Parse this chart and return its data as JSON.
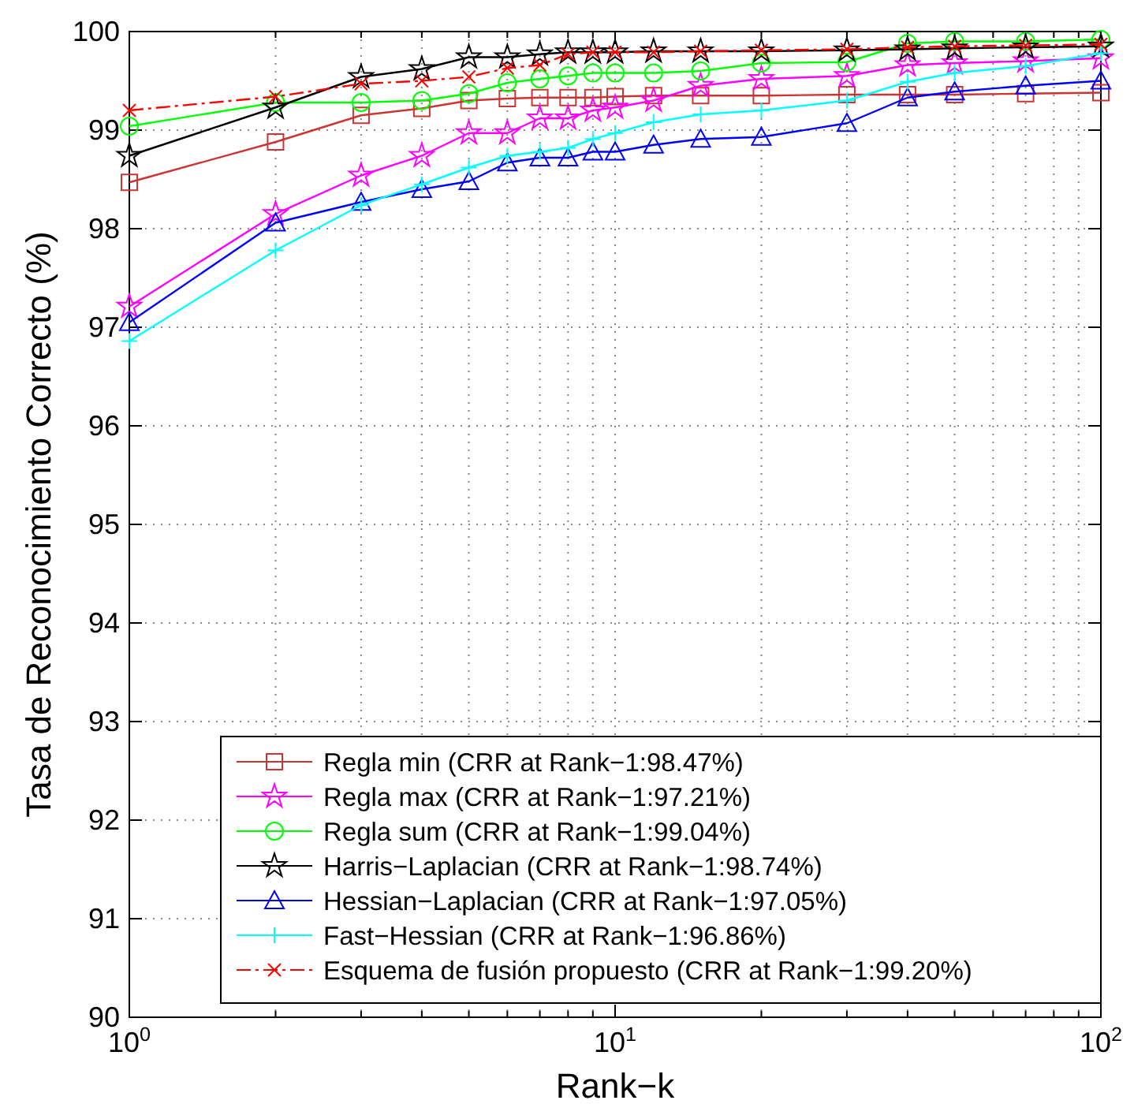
{
  "chart_data": {
    "type": "line",
    "xlabel": "Rank−k",
    "ylabel": "Tasa de Reconocimiento Correcto (%)",
    "log": "x",
    "grid": true,
    "legend": "bottom right",
    "line_style": "solid",
    "xlim": [
      1,
      100
    ],
    "ylim": [
      90,
      100
    ],
    "xticks": [
      {
        "value": 1,
        "label": "10$^{0}$"
      },
      {
        "value": 2,
        "label": null
      },
      {
        "value": 3,
        "label": null
      },
      {
        "value": 4,
        "label": null
      },
      {
        "value": 5,
        "label": null
      },
      {
        "value": 6,
        "label": null
      },
      {
        "value": 7,
        "label": null
      },
      {
        "value": 8,
        "label": null
      },
      {
        "value": 9,
        "label": null
      },
      {
        "value": 10,
        "label": "10$^{1}$"
      },
      {
        "value": 20,
        "label": null
      },
      {
        "value": 30,
        "label": null
      },
      {
        "value": 40,
        "label": null
      },
      {
        "value": 50,
        "label": null
      },
      {
        "value": 60,
        "label": null
      },
      {
        "value": 70,
        "label": null
      },
      {
        "value": 80,
        "label": null
      },
      {
        "value": 90,
        "label": null
      },
      {
        "value": 100,
        "label": "10$^{2}$"
      }
    ],
    "yticks": [
      90,
      91,
      92,
      93,
      94,
      95,
      96,
      97,
      98,
      99,
      100
    ],
    "x": [
      1,
      2,
      3,
      4,
      5,
      6,
      7,
      8,
      9,
      10,
      12,
      15,
      20,
      30,
      40,
      50,
      70,
      100
    ],
    "series": [
      {
        "name": "Regla min (CRR at Rank−1:98.47%)",
        "color": "#cc3333",
        "marker": "square",
        "values": [
          98.47,
          98.88,
          99.15,
          99.22,
          99.3,
          99.32,
          99.33,
          99.33,
          99.33,
          99.34,
          99.35,
          99.35,
          99.35,
          99.36,
          99.36,
          99.36,
          99.37,
          99.38
        ]
      },
      {
        "name": "Regla max (CRR at Rank−1:97.21%)",
        "color": "#ff00ff",
        "marker": "star",
        "values": [
          97.21,
          98.15,
          98.54,
          98.74,
          98.97,
          98.97,
          99.12,
          99.12,
          99.2,
          99.23,
          99.3,
          99.45,
          99.52,
          99.55,
          99.66,
          99.68,
          99.7,
          99.73
        ]
      },
      {
        "name": "Regla sum (CRR at Rank−1:99.04%)",
        "color": "#00ff00",
        "marker": "circle",
        "values": [
          99.04,
          99.28,
          99.28,
          99.3,
          99.37,
          99.48,
          99.52,
          99.55,
          99.58,
          99.58,
          99.58,
          99.6,
          99.68,
          99.69,
          99.88,
          99.9,
          99.9,
          99.92
        ]
      },
      {
        "name": "Harris−Laplacian (CRR at Rank−1:98.74%)",
        "color": "#000000",
        "marker": "star",
        "values": [
          98.74,
          99.23,
          99.54,
          99.62,
          99.74,
          99.74,
          99.77,
          99.79,
          99.79,
          99.79,
          99.8,
          99.8,
          99.8,
          99.81,
          99.82,
          99.83,
          99.84,
          99.85
        ]
      },
      {
        "name": "Hessian−Laplacian (CRR at Rank−1:97.05%)",
        "color": "#0000ff",
        "marker": "triangle",
        "values": [
          97.05,
          98.06,
          98.27,
          98.4,
          98.48,
          98.67,
          98.72,
          98.72,
          98.78,
          98.78,
          98.85,
          98.91,
          98.93,
          99.07,
          99.33,
          99.39,
          99.45,
          99.5
        ]
      },
      {
        "name": "Fast−Hessian (CRR at Rank−1:96.86%)",
        "color": "#00ffff",
        "marker": "plus",
        "values": [
          96.86,
          97.78,
          98.24,
          98.45,
          98.62,
          98.74,
          98.78,
          98.82,
          98.91,
          98.97,
          99.08,
          99.16,
          99.2,
          99.3,
          99.49,
          99.58,
          99.65,
          99.78
        ]
      },
      {
        "name": "Esquema de fusión propuesto (CRR at Rank−1:99.20%)",
        "color": "#ff0000",
        "marker": "cross",
        "line_style": "dashed",
        "values": [
          99.2,
          99.34,
          99.47,
          99.5,
          99.54,
          99.63,
          99.66,
          99.77,
          99.79,
          99.79,
          99.79,
          99.8,
          99.81,
          99.82,
          99.84,
          99.85,
          99.86,
          99.87
        ]
      }
    ]
  }
}
